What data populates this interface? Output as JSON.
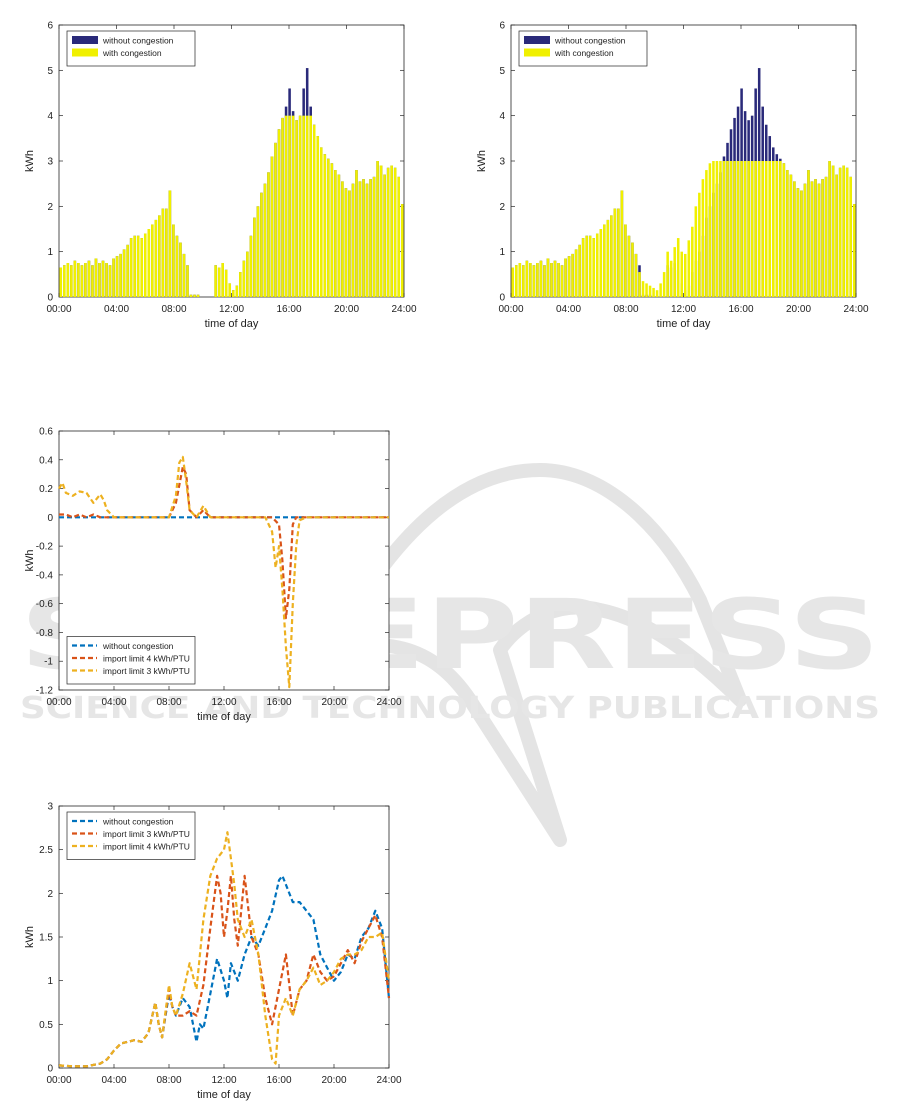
{
  "colors": {
    "navy": "#2a2a7a",
    "yellow": "#f0f000",
    "blue": "#0072bd",
    "red": "#d95319",
    "orange": "#edb120",
    "watermark": "#e6e6e6"
  },
  "watermark": {
    "big": "SCITEPRESS",
    "small": "SCIENCE AND TECHNOLOGY PUBLICATIONS"
  },
  "chart_data": [
    {
      "type": "bar",
      "xlabel": "time of day",
      "ylabel": "kWh",
      "xlim": [
        0,
        24
      ],
      "ylim": [
        0,
        6
      ],
      "yticks": [
        0,
        1,
        2,
        3,
        4,
        5,
        6
      ],
      "xtick_labels": [
        "00:00",
        "04:00",
        "08:00",
        "12:00",
        "16:00",
        "20:00",
        "24:00"
      ],
      "legend_position": "top-left",
      "grid": false,
      "series": [
        {
          "name": "without congestion",
          "color": "navy",
          "values": [
            0.65,
            0.7,
            0.75,
            0.7,
            0.8,
            0.75,
            0.7,
            0.75,
            0.8,
            0.7,
            0.85,
            0.75,
            0.8,
            0.75,
            0.7,
            0.85,
            0.9,
            0.95,
            1.05,
            1.15,
            1.3,
            1.35,
            1.35,
            1.3,
            1.4,
            1.5,
            1.6,
            1.7,
            1.8,
            1.95,
            1.95,
            2.35,
            1.6,
            1.35,
            1.2,
            0.95,
            0.7,
            0.05,
            0.05,
            0.05,
            0,
            0,
            0,
            0,
            0.7,
            0.65,
            0.75,
            0.6,
            0.3,
            0.15,
            0.25,
            0.55,
            0.8,
            1.0,
            1.35,
            1.75,
            2.0,
            2.3,
            2.5,
            2.75,
            3.1,
            3.4,
            3.7,
            3.95,
            4.2,
            4.6,
            4.1,
            3.9,
            4.0,
            4.6,
            5.05,
            4.2,
            3.8,
            3.55,
            3.3,
            3.15,
            3.05,
            2.95,
            2.8,
            2.7,
            2.55,
            2.4,
            2.35,
            2.5,
            2.8,
            2.55,
            2.6,
            2.5,
            2.6,
            2.65,
            3.0,
            2.9,
            2.7,
            2.85,
            2.9,
            2.85,
            2.65,
            2.05
          ]
        },
        {
          "name": "with congestion",
          "color": "yellow",
          "values": [
            0.65,
            0.7,
            0.75,
            0.7,
            0.8,
            0.75,
            0.7,
            0.75,
            0.8,
            0.7,
            0.85,
            0.75,
            0.8,
            0.75,
            0.7,
            0.85,
            0.9,
            0.95,
            1.05,
            1.15,
            1.3,
            1.35,
            1.35,
            1.3,
            1.4,
            1.5,
            1.6,
            1.7,
            1.8,
            1.95,
            1.95,
            2.35,
            1.6,
            1.35,
            1.2,
            0.95,
            0.7,
            0.05,
            0.05,
            0.05,
            0,
            0,
            0,
            0,
            0.7,
            0.65,
            0.75,
            0.6,
            0.3,
            0.15,
            0.25,
            0.55,
            0.8,
            1.0,
            1.35,
            1.75,
            2.0,
            2.3,
            2.5,
            2.75,
            3.1,
            3.4,
            3.7,
            3.95,
            4.0,
            4.0,
            4.0,
            3.9,
            4.0,
            4.0,
            4.0,
            4.0,
            3.8,
            3.55,
            3.3,
            3.15,
            3.05,
            2.95,
            2.8,
            2.7,
            2.55,
            2.4,
            2.35,
            2.5,
            2.8,
            2.55,
            2.6,
            2.5,
            2.6,
            2.65,
            3.0,
            2.9,
            2.7,
            2.85,
            2.9,
            2.85,
            2.65,
            2.05
          ]
        }
      ]
    },
    {
      "type": "bar",
      "xlabel": "time of day",
      "ylabel": "kWh",
      "xlim": [
        0,
        24
      ],
      "ylim": [
        0,
        6
      ],
      "yticks": [
        0,
        1,
        2,
        3,
        4,
        5,
        6
      ],
      "xtick_labels": [
        "00:00",
        "04:00",
        "08:00",
        "12:00",
        "16:00",
        "20:00",
        "24:00"
      ],
      "legend_position": "top-left",
      "grid": false,
      "series": [
        {
          "name": "without congestion",
          "color": "navy",
          "values": [
            0.65,
            0.7,
            0.75,
            0.7,
            0.8,
            0.75,
            0.7,
            0.75,
            0.8,
            0.7,
            0.85,
            0.75,
            0.8,
            0.75,
            0.7,
            0.85,
            0.9,
            0.95,
            1.05,
            1.15,
            1.3,
            1.35,
            1.35,
            1.3,
            1.4,
            1.5,
            1.6,
            1.7,
            1.8,
            1.95,
            1.95,
            2.35,
            1.6,
            1.35,
            1.2,
            0.95,
            0.7,
            0.05,
            0.05,
            0.05,
            0,
            0,
            0,
            0,
            0.7,
            0.65,
            0.75,
            0.6,
            0.3,
            0.15,
            0.25,
            0.55,
            0.8,
            1.0,
            1.35,
            1.75,
            2.0,
            2.3,
            2.5,
            2.75,
            3.1,
            3.4,
            3.7,
            3.95,
            4.2,
            4.6,
            4.1,
            3.9,
            4.0,
            4.6,
            5.05,
            4.2,
            3.8,
            3.55,
            3.3,
            3.15,
            3.05,
            2.95,
            2.8,
            2.7,
            2.55,
            2.4,
            2.35,
            2.5,
            2.8,
            2.55,
            2.6,
            2.5,
            2.6,
            2.65,
            3.0,
            2.9,
            2.7,
            2.85,
            2.9,
            2.85,
            2.65,
            2.05
          ]
        },
        {
          "name": "with congestion",
          "color": "yellow",
          "values": [
            0.65,
            0.7,
            0.75,
            0.7,
            0.8,
            0.75,
            0.7,
            0.75,
            0.8,
            0.7,
            0.85,
            0.75,
            0.8,
            0.75,
            0.7,
            0.85,
            0.9,
            0.95,
            1.05,
            1.15,
            1.3,
            1.35,
            1.35,
            1.3,
            1.4,
            1.5,
            1.6,
            1.7,
            1.8,
            1.95,
            1.95,
            2.35,
            1.6,
            1.35,
            1.2,
            0.95,
            0.55,
            0.35,
            0.3,
            0.25,
            0.2,
            0.15,
            0.3,
            0.55,
            1.0,
            0.8,
            1.1,
            1.3,
            1.0,
            0.95,
            1.25,
            1.55,
            2.0,
            2.3,
            2.6,
            2.8,
            2.95,
            3.0,
            3.0,
            3.0,
            3.0,
            3.0,
            3.0,
            3.0,
            3.0,
            3.0,
            3.0,
            3.0,
            3.0,
            3.0,
            3.0,
            3.0,
            3.0,
            3.0,
            3.0,
            3.0,
            3.0,
            2.95,
            2.8,
            2.7,
            2.55,
            2.4,
            2.35,
            2.5,
            2.8,
            2.55,
            2.6,
            2.5,
            2.6,
            2.65,
            3.0,
            2.9,
            2.7,
            2.85,
            2.9,
            2.85,
            2.65,
            2.05
          ]
        }
      ]
    },
    {
      "type": "line",
      "xlabel": "time of day",
      "ylabel": "kWh",
      "xlim": [
        0,
        24
      ],
      "ylim": [
        -1.2,
        0.6
      ],
      "yticks": [
        -1.2,
        -1,
        -0.8,
        -0.6,
        -0.4,
        -0.2,
        0,
        0.2,
        0.4,
        0.6
      ],
      "xtick_labels": [
        "00:00",
        "04:00",
        "08:00",
        "12:00",
        "16:00",
        "20:00",
        "24:00"
      ],
      "legend_position": "bottom-left",
      "grid": false,
      "series": [
        {
          "name": "without congestion",
          "color": "blue",
          "style": "dashed",
          "x": [
            0,
            24
          ],
          "y": [
            0,
            0
          ]
        },
        {
          "name": "import limit 4 kWh/PTU",
          "color": "red",
          "style": "dashed",
          "x": [
            0,
            0.5,
            1,
            1.5,
            2,
            2.5,
            3,
            4,
            8,
            8.5,
            9,
            9.25,
            9.5,
            10,
            10.5,
            11,
            11.5,
            12,
            15.5,
            16,
            16.25,
            16.5,
            16.75,
            17,
            17.25,
            17.5,
            18,
            24
          ],
          "y": [
            0.02,
            0.02,
            0,
            0.02,
            0,
            0.02,
            0,
            0,
            0,
            0.1,
            0.35,
            0.3,
            0.05,
            0,
            0.05,
            0,
            0,
            0,
            0,
            -0.05,
            -0.3,
            -0.7,
            -0.5,
            -0.05,
            0,
            0,
            0,
            0
          ]
        },
        {
          "name": "import limit 3 kWh/PTU",
          "color": "orange",
          "style": "dashed",
          "x": [
            0,
            0.25,
            0.5,
            1,
            1.5,
            2,
            2.5,
            3,
            3.25,
            3.5,
            4,
            8,
            8.5,
            8.75,
            9,
            9.25,
            9.5,
            10,
            10.5,
            11,
            15,
            15.5,
            15.75,
            16,
            16.25,
            16.5,
            16.75,
            17,
            17.25,
            17.5,
            18,
            24
          ],
          "y": [
            0.2,
            0.24,
            0.17,
            0.15,
            0.18,
            0.17,
            0.1,
            0.16,
            0.12,
            0.05,
            0,
            0,
            0.15,
            0.38,
            0.42,
            0.25,
            0.05,
            0,
            0.08,
            0,
            0,
            -0.1,
            -0.35,
            -0.2,
            -0.5,
            -0.9,
            -1.18,
            -0.6,
            -0.2,
            -0.02,
            0,
            0
          ]
        }
      ]
    },
    {
      "type": "line",
      "xlabel": "time of day",
      "ylabel": "kWh",
      "xlim": [
        0,
        24
      ],
      "ylim": [
        0,
        3
      ],
      "yticks": [
        0,
        0.5,
        1,
        1.5,
        2,
        2.5,
        3
      ],
      "xtick_labels": [
        "00:00",
        "04:00",
        "08:00",
        "12:00",
        "16:00",
        "20:00",
        "24:00"
      ],
      "legend_position": "top-left",
      "grid": false,
      "series": [
        {
          "name": "without congestion",
          "color": "blue",
          "style": "dashed",
          "x": [
            0,
            1,
            2,
            3,
            3.5,
            4,
            4.5,
            5,
            5.5,
            6,
            6.5,
            7,
            7.25,
            7.5,
            8,
            8.25,
            8.5,
            9,
            9.5,
            10,
            10.25,
            10.5,
            11,
            11.5,
            12,
            12.25,
            12.5,
            13,
            13.5,
            14,
            14.5,
            15,
            15.5,
            16,
            16.25,
            16.5,
            17,
            17.5,
            18,
            18.5,
            19,
            19.5,
            20,
            20.5,
            21,
            21.5,
            22,
            22.5,
            23,
            23.5,
            24
          ],
          "y": [
            0.03,
            0.02,
            0.02,
            0.05,
            0.1,
            0.2,
            0.28,
            0.3,
            0.32,
            0.3,
            0.4,
            0.75,
            0.5,
            0.35,
            0.85,
            0.7,
            0.6,
            0.8,
            0.7,
            0.3,
            0.5,
            0.45,
            0.85,
            1.25,
            1.0,
            0.8,
            1.2,
            1.0,
            1.3,
            1.5,
            1.4,
            1.6,
            1.8,
            2.15,
            2.2,
            2.1,
            1.9,
            1.9,
            1.8,
            1.7,
            1.3,
            1.15,
            1.0,
            1.1,
            1.3,
            1.25,
            1.5,
            1.6,
            1.8,
            1.6,
            0.8
          ]
        },
        {
          "name": "import limit 3 kWh/PTU",
          "color": "red",
          "style": "dashed",
          "x": [
            0,
            1,
            2,
            3,
            3.5,
            4,
            4.5,
            5,
            5.5,
            6,
            6.5,
            7,
            7.25,
            7.5,
            8,
            8.25,
            8.5,
            9,
            9.5,
            10,
            10.5,
            11,
            11.5,
            11.75,
            12,
            12.25,
            12.5,
            12.75,
            13,
            13.5,
            14,
            14.5,
            15,
            15.5,
            16,
            16.5,
            17,
            17.5,
            18,
            18.5,
            19,
            19.5,
            20,
            20.5,
            21,
            21.5,
            22,
            22.5,
            23,
            23.5,
            24
          ],
          "y": [
            0.03,
            0.02,
            0.02,
            0.05,
            0.1,
            0.2,
            0.28,
            0.3,
            0.32,
            0.3,
            0.4,
            0.75,
            0.5,
            0.35,
            0.9,
            0.7,
            0.6,
            0.6,
            0.65,
            0.6,
            0.95,
            1.6,
            2.2,
            2.0,
            1.5,
            1.8,
            2.2,
            1.7,
            1.4,
            2.2,
            1.5,
            1.3,
            0.8,
            0.5,
            0.9,
            1.3,
            0.6,
            0.9,
            1.0,
            1.3,
            1.1,
            1.0,
            1.05,
            1.2,
            1.35,
            1.2,
            1.45,
            1.6,
            1.75,
            1.5,
            0.8
          ]
        },
        {
          "name": "import limit 4 kWh/PTU",
          "color": "orange",
          "style": "dashed",
          "x": [
            0,
            1,
            2,
            3,
            3.5,
            4,
            4.5,
            5,
            5.5,
            6,
            6.5,
            7,
            7.25,
            7.5,
            8,
            8.25,
            8.5,
            9,
            9.5,
            10,
            10.5,
            11,
            11.5,
            12,
            12.25,
            12.5,
            12.75,
            13,
            13.5,
            14,
            14.5,
            15,
            15.5,
            15.75,
            16,
            16.5,
            17,
            17.5,
            18,
            18.5,
            19,
            19.5,
            20,
            20.5,
            21,
            21.5,
            22,
            22.5,
            23,
            23.5,
            24
          ],
          "y": [
            0.03,
            0.02,
            0.02,
            0.05,
            0.1,
            0.2,
            0.28,
            0.3,
            0.32,
            0.3,
            0.4,
            0.75,
            0.5,
            0.35,
            0.95,
            0.7,
            0.6,
            0.85,
            1.2,
            0.9,
            1.7,
            2.2,
            2.4,
            2.5,
            2.7,
            2.4,
            2.1,
            1.7,
            1.5,
            1.7,
            1.3,
            0.6,
            0.1,
            0.05,
            0.6,
            0.8,
            0.6,
            0.9,
            1.0,
            1.15,
            0.95,
            1.0,
            1.1,
            1.25,
            1.3,
            1.3,
            1.35,
            1.5,
            1.5,
            1.55,
            1.0
          ]
        }
      ]
    }
  ]
}
